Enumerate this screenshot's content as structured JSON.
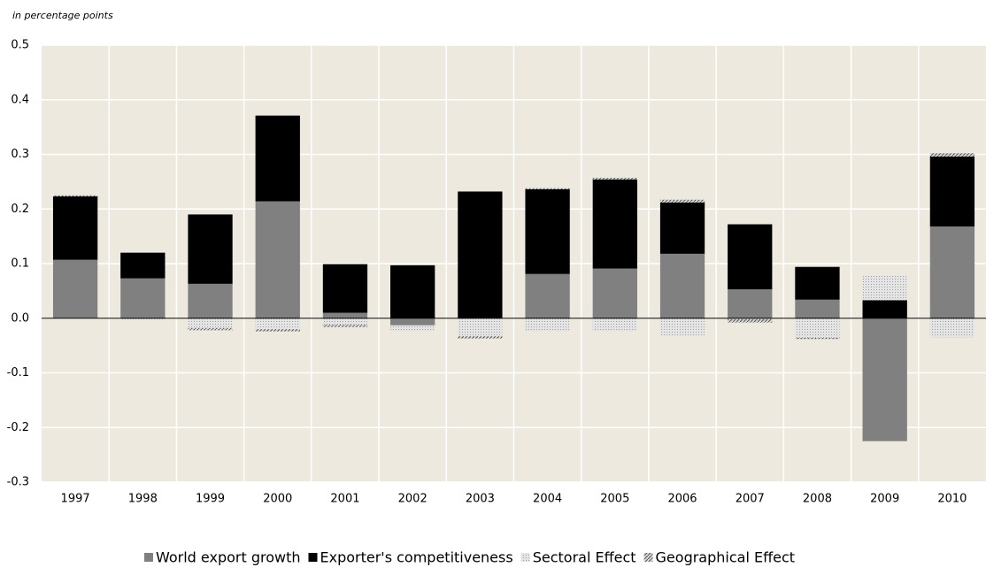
{
  "chart_data": {
    "type": "bar",
    "stacked": true,
    "y_axis_label": "in percentage points",
    "categories": [
      "1997",
      "1998",
      "1999",
      "2000",
      "2001",
      "2002",
      "2003",
      "2004",
      "2005",
      "2006",
      "2007",
      "2008",
      "2009",
      "2010"
    ],
    "series": [
      {
        "name": "World export growth",
        "color": "#808080",
        "values": [
          0.107,
          0.073,
          0.063,
          0.214,
          0.01,
          -0.013,
          0.0,
          0.081,
          0.091,
          0.118,
          0.053,
          0.034,
          -0.225,
          0.168
        ]
      },
      {
        "name": "Exporter's competitiveness",
        "color": "#000000",
        "values": [
          0.116,
          0.047,
          0.127,
          0.157,
          0.089,
          0.097,
          0.232,
          0.155,
          0.163,
          0.094,
          0.119,
          0.06,
          0.033,
          0.128
        ]
      },
      {
        "name": "Sectoral Effect",
        "color": "#cfcfcf",
        "values": [
          0.0,
          -0.002,
          -0.018,
          -0.02,
          -0.012,
          -0.011,
          -0.033,
          -0.024,
          -0.024,
          -0.032,
          -0.002,
          -0.036,
          0.045,
          -0.035
        ]
      },
      {
        "name": "Geographical Effect",
        "color": "#a8a8a8",
        "values": [
          0.002,
          0.0,
          -0.004,
          -0.004,
          -0.004,
          0.0,
          -0.004,
          0.002,
          0.003,
          0.005,
          -0.006,
          -0.002,
          0.0,
          0.006
        ]
      }
    ],
    "ylim": [
      -0.3,
      0.5
    ],
    "yticks": [
      -0.3,
      -0.2,
      -0.1,
      {
        "value": 0,
        "label": "0.0"
      },
      0.1,
      0.2,
      0.3,
      0.4,
      0.5
    ],
    "grid": true,
    "legend": "bottom"
  }
}
